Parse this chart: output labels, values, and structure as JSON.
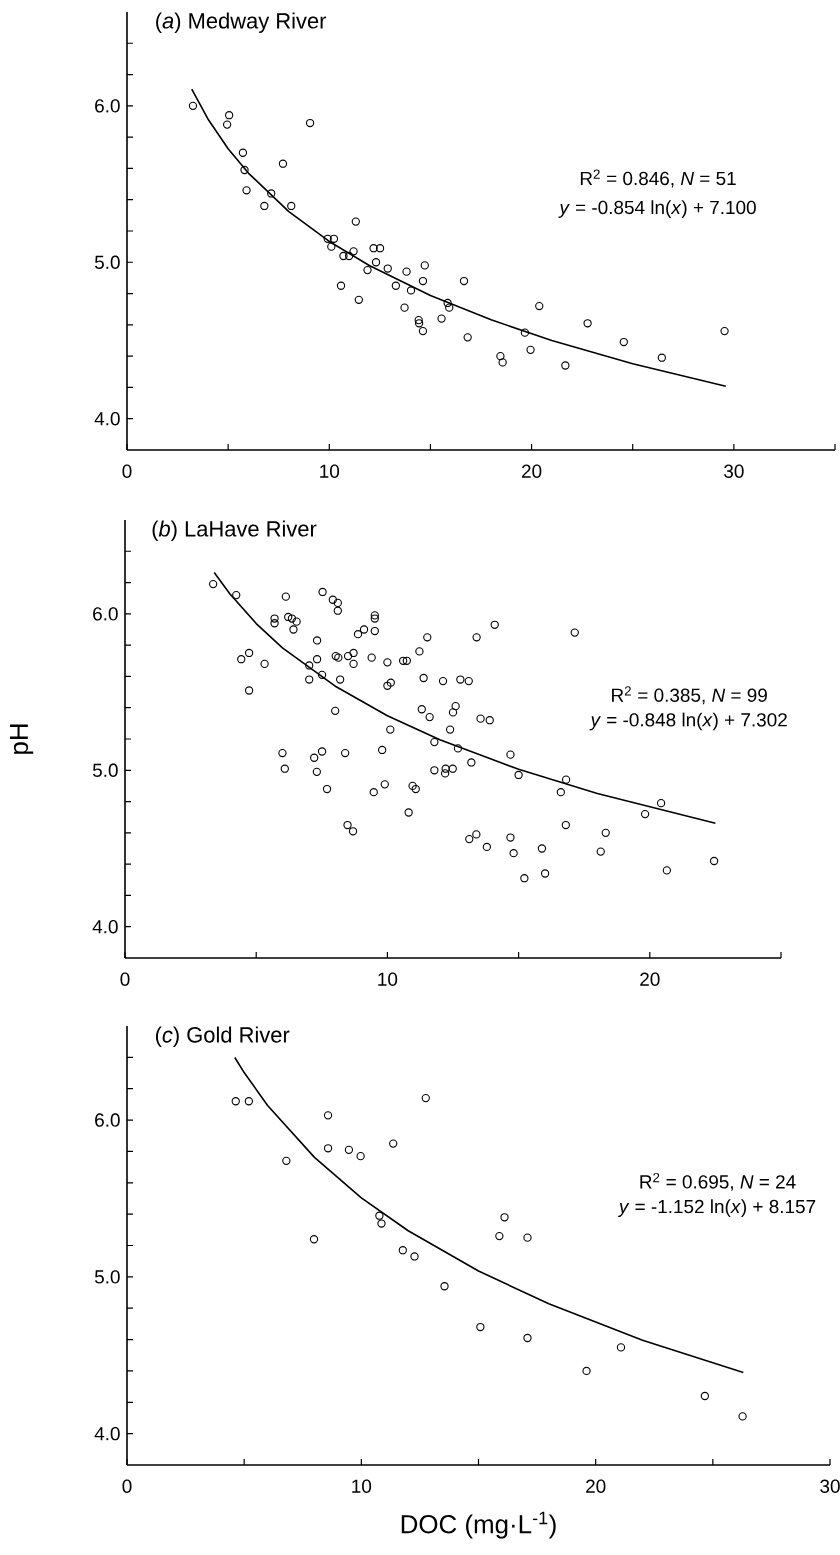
{
  "chart_data": [
    {
      "type": "scatter",
      "title": "(*a*) Medway River",
      "annotations": [
        "R$^{2}$ = 0.846, *N* = 51",
        "*y* = -0.854 ln(*x*) + 7.100"
      ],
      "xlim": [
        0,
        35
      ],
      "ylim": [
        3.8,
        6.6
      ],
      "xticks": [
        0,
        {
          "value": 5,
          "label": null
        },
        10,
        {
          "value": 15,
          "label": null
        },
        20,
        {
          "value": 25,
          "label": null
        },
        30,
        {
          "value": 35,
          "label": null
        }
      ],
      "yticks": [
        {
          "value": 4.0,
          "label": "4.0"
        },
        {
          "value": 4.2,
          "label": null
        },
        {
          "value": 4.4,
          "label": null
        },
        {
          "value": 4.6,
          "label": null
        },
        {
          "value": 4.8,
          "label": null
        },
        {
          "value": 5.0,
          "label": "5.0"
        },
        {
          "value": 5.2,
          "label": null
        },
        {
          "value": 5.4,
          "label": null
        },
        {
          "value": 5.6,
          "label": null
        },
        {
          "value": 5.8,
          "label": null
        },
        {
          "value": 6.0,
          "label": "6.0"
        },
        {
          "value": 6.2,
          "label": null
        },
        {
          "value": 6.4,
          "label": null
        }
      ],
      "series": [
        {
          "type": "scatter",
          "marker": "circle",
          "color": "#000000",
          "x": [
            3.26,
            5.05,
            4.95,
            9.05,
            5.73,
            5.81,
            5.91,
            7.71,
            7.13,
            6.79,
            8.12,
            9.92,
            10.23,
            10.1,
            11.31,
            10.7,
            10.98,
            11.2,
            12.19,
            12.51,
            12.31,
            12.89,
            11.89,
            10.58,
            11.46,
            13.29,
            13.82,
            14.04,
            14.72,
            14.63,
            13.72,
            14.42,
            14.44,
            14.63,
            15.55,
            15.85,
            15.93,
            16.66,
            16.84,
            20.38,
            19.67,
            19.95,
            18.46,
            18.57,
            21.67,
            22.77,
            24.56,
            26.44,
            29.54
          ],
          "values": [
            6.0,
            5.94,
            5.88,
            5.89,
            5.7,
            5.59,
            5.46,
            5.63,
            5.44,
            5.36,
            5.36,
            5.15,
            5.15,
            5.1,
            5.26,
            5.04,
            5.04,
            5.07,
            5.09,
            5.09,
            5.0,
            4.96,
            4.95,
            4.85,
            4.76,
            4.85,
            4.94,
            4.82,
            4.98,
            4.88,
            4.71,
            4.63,
            4.61,
            4.56,
            4.64,
            4.74,
            4.71,
            4.88,
            4.52,
            4.72,
            4.55,
            4.44,
            4.4,
            4.36,
            4.34,
            4.61,
            4.49,
            4.39,
            4.56
          ]
        },
        {
          "type": "line",
          "marker": "none",
          "color": "#000000",
          "x": [
            3.2,
            4,
            5,
            6,
            8,
            10,
            12,
            15,
            18,
            21,
            25,
            29.6
          ],
          "values": [
            6.107,
            5.916,
            5.726,
            5.57,
            5.324,
            5.133,
            4.978,
            4.787,
            4.632,
            4.5,
            4.351,
            4.207
          ]
        }
      ]
    },
    {
      "type": "scatter",
      "title": "(*b*) LaHave River",
      "ylabel": "pH",
      "annotations": [
        "R$^{2}$ = 0.385, *N* = 99",
        "*y* = -0.848 ln(*x*) + 7.302"
      ],
      "xlim": [
        0,
        25
      ],
      "ylim": [
        3.8,
        6.6
      ],
      "xticks": [
        0,
        {
          "value": 5,
          "label": null
        },
        10,
        {
          "value": 15,
          "label": null
        },
        20,
        {
          "value": 25,
          "label": null
        }
      ],
      "yticks": [
        {
          "value": 4.0,
          "label": "4.0"
        },
        {
          "value": 4.2,
          "label": null
        },
        {
          "value": 4.4,
          "label": null
        },
        {
          "value": 4.6,
          "label": null
        },
        {
          "value": 4.8,
          "label": null
        },
        {
          "value": 5.0,
          "label": "5.0"
        },
        {
          "value": 5.2,
          "label": null
        },
        {
          "value": 5.4,
          "label": null
        },
        {
          "value": 5.6,
          "label": null
        },
        {
          "value": 5.8,
          "label": null
        },
        {
          "value": 6.0,
          "label": "6.0"
        },
        {
          "value": 6.2,
          "label": null
        },
        {
          "value": 6.4,
          "label": null
        }
      ],
      "series": [
        {
          "type": "scatter",
          "marker": "circle",
          "color": "#000000",
          "x": [
            3.36,
            4.24,
            4.43,
            4.73,
            4.73,
            5.32,
            5.7,
            5.7,
            6.13,
            6.22,
            6.36,
            6.42,
            6.54,
            6.0,
            6.09,
            7.02,
            7.02,
            7.32,
            7.32,
            7.51,
            7.53,
            7.21,
            7.51,
            7.31,
            7.7,
            7.92,
            8.11,
            8.11,
            8.03,
            8.13,
            8.2,
            8.01,
            8.39,
            8.48,
            8.69,
            8.5,
            8.71,
            8.71,
            8.88,
            9.11,
            9.4,
            9.52,
            9.52,
            9.52,
            9.48,
            9.9,
            9.8,
            10.0,
            10.0,
            10.13,
            10.11,
            10.6,
            10.74,
            11.22,
            11.52,
            11.38,
            11.31,
            11.61,
            11.79,
            11.79,
            12.2,
            12.22,
            12.49,
            12.12,
            12.78,
            13.1,
            12.5,
            12.6,
            12.39,
            12.69,
            13.2,
            10.96,
            11.08,
            10.81,
            13.12,
            13.39,
            13.4,
            13.55,
            13.9,
            14.09,
            17.14,
            14.69,
            15.0,
            16.81,
            16.61,
            20.43,
            19.82,
            16.8,
            18.32,
            13.79,
            14.69,
            14.81,
            15.89,
            15.22,
            16.01,
            18.13,
            20.65,
            22.45
          ],
          "values": [
            6.19,
            6.12,
            5.71,
            5.75,
            5.51,
            5.68,
            5.97,
            5.94,
            6.11,
            5.98,
            5.97,
            5.9,
            5.95,
            5.11,
            5.01,
            5.67,
            5.58,
            5.83,
            5.71,
            5.61,
            6.14,
            5.08,
            5.12,
            4.99,
            4.88,
            6.09,
            6.07,
            6.02,
            5.73,
            5.72,
            5.58,
            5.38,
            5.11,
            4.65,
            4.61,
            5.73,
            5.75,
            5.68,
            5.87,
            5.9,
            5.72,
            5.99,
            5.97,
            5.89,
            4.86,
            4.91,
            5.13,
            5.69,
            5.54,
            5.56,
            5.26,
            5.7,
            5.7,
            5.76,
            5.85,
            5.59,
            5.39,
            5.34,
            5.18,
            5.0,
            4.98,
            5.01,
            5.01,
            5.57,
            5.58,
            5.57,
            5.37,
            5.41,
            5.26,
            5.14,
            5.05,
            4.9,
            4.88,
            4.73,
            4.56,
            4.59,
            5.85,
            5.33,
            5.32,
            5.93,
            5.88,
            5.1,
            4.97,
            4.94,
            4.86,
            4.79,
            4.72,
            4.65,
            4.6,
            4.51,
            4.57,
            4.47,
            4.5,
            4.31,
            4.34,
            4.48,
            4.36,
            4.42
          ]
        },
        {
          "type": "line",
          "marker": "none",
          "color": "#000000",
          "x": [
            3.4,
            4,
            5,
            6,
            8,
            10,
            12,
            15,
            18,
            22.5
          ],
          "values": [
            6.264,
            6.127,
            5.938,
            5.782,
            5.539,
            5.349,
            5.195,
            5.006,
            4.851,
            4.661
          ]
        }
      ]
    },
    {
      "type": "scatter",
      "title": "(*c*) Gold River",
      "xlabel": "DOC (mg·L$^{-1}$)",
      "annotations": [
        "R$^{2}$ = 0.695, *N* = 24",
        "*y* = -1.152 ln(*x*) + 8.157"
      ],
      "xlim": [
        0,
        30
      ],
      "ylim": [
        3.8,
        6.6
      ],
      "xticks": [
        0,
        {
          "value": 5,
          "label": null
        },
        10,
        {
          "value": 15,
          "label": null
        },
        20,
        {
          "value": 25,
          "label": null
        },
        30
      ],
      "yticks": [
        {
          "value": 4.0,
          "label": "4.0"
        },
        {
          "value": 4.2,
          "label": null
        },
        {
          "value": 4.4,
          "label": null
        },
        {
          "value": 4.6,
          "label": null
        },
        {
          "value": 4.8,
          "label": null
        },
        {
          "value": 5.0,
          "label": "5.0"
        },
        {
          "value": 5.2,
          "label": null
        },
        {
          "value": 5.4,
          "label": null
        },
        {
          "value": 5.6,
          "label": null
        },
        {
          "value": 5.8,
          "label": null
        },
        {
          "value": 6.0,
          "label": "6.0"
        },
        {
          "value": 6.2,
          "label": null
        },
        {
          "value": 6.4,
          "label": null
        }
      ],
      "series": [
        {
          "type": "scatter",
          "marker": "circle",
          "color": "#000000",
          "x": [
            4.64,
            5.2,
            6.8,
            7.98,
            8.58,
            8.58,
            9.47,
            9.97,
            11.36,
            12.75,
            10.77,
            10.86,
            11.77,
            12.27,
            13.55,
            15.08,
            16.11,
            15.89,
            17.09,
            17.09,
            21.08,
            19.61,
            24.66,
            26.27
          ],
          "values": [
            6.12,
            6.12,
            5.74,
            5.24,
            6.03,
            5.82,
            5.81,
            5.77,
            5.85,
            6.14,
            5.39,
            5.34,
            5.17,
            5.13,
            4.94,
            4.68,
            5.38,
            5.26,
            5.25,
            4.61,
            4.55,
            4.4,
            4.24,
            4.11
          ]
        },
        {
          "type": "line",
          "marker": "none",
          "color": "#000000",
          "x": [
            4.6,
            5,
            6,
            8,
            10,
            12,
            15,
            18,
            22,
            26.3
          ],
          "values": [
            6.399,
            6.303,
            6.093,
            5.762,
            5.504,
            5.294,
            5.037,
            4.828,
            4.596,
            4.39
          ]
        }
      ]
    }
  ]
}
